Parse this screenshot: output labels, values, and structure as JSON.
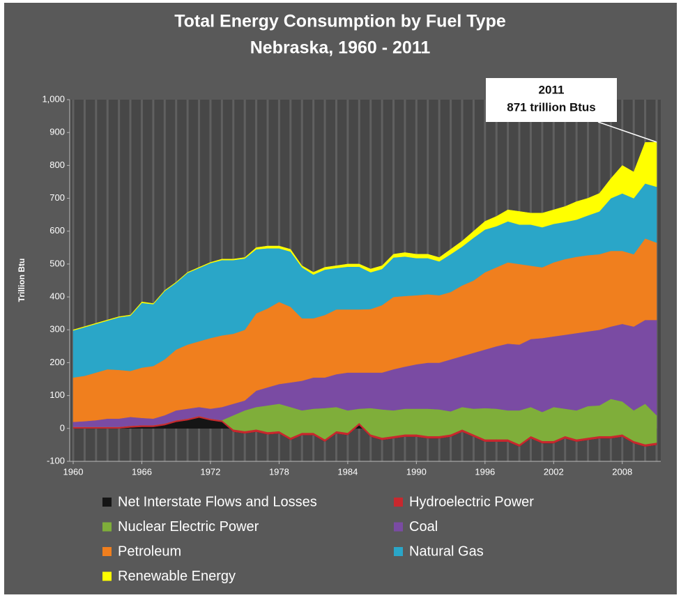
{
  "chart_data": {
    "type": "stacked_area",
    "title": "Total Energy Consumption by Fuel Type",
    "subtitle": "Nebraska, 1960 - 2011",
    "y_label": "Trillion Btu",
    "annotation": [
      "2011",
      "871 trillion Btus"
    ],
    "x": [
      1960,
      1961,
      1962,
      1963,
      1964,
      1965,
      1966,
      1967,
      1968,
      1969,
      1970,
      1971,
      1972,
      1973,
      1974,
      1975,
      1976,
      1977,
      1978,
      1979,
      1980,
      1981,
      1982,
      1983,
      1984,
      1985,
      1986,
      1987,
      1988,
      1989,
      1990,
      1991,
      1992,
      1993,
      1994,
      1995,
      1996,
      1997,
      1998,
      1999,
      2000,
      2001,
      2002,
      2003,
      2004,
      2005,
      2006,
      2007,
      2008,
      2009,
      2010,
      2011
    ],
    "xlim": [
      1960,
      2011
    ],
    "xticks": [
      1960,
      1966,
      1972,
      1978,
      1984,
      1990,
      1996,
      2002,
      2008
    ],
    "ylim": [
      -100,
      1000
    ],
    "yticks": [
      -100,
      0,
      100,
      200,
      300,
      400,
      500,
      600,
      700,
      800,
      900,
      {
        "value": 1000,
        "label": "1,000"
      }
    ],
    "grid": true,
    "legend": "bottom",
    "series": [
      {
        "name": "Net Interstate Flows and Losses",
        "color": "#151515",
        "values": [
          0,
          0,
          0,
          0,
          0,
          3,
          5,
          5,
          10,
          20,
          25,
          33,
          25,
          20,
          -10,
          -15,
          -10,
          -18,
          -15,
          -35,
          -20,
          -20,
          -40,
          -15,
          -20,
          10,
          -25,
          -35,
          -30,
          -25,
          -25,
          -30,
          -30,
          -25,
          -10,
          -25,
          -40,
          -40,
          -40,
          -55,
          -30,
          -45,
          -45,
          -30,
          -40,
          -35,
          -30,
          -30,
          -25,
          -45,
          -55,
          -50
        ]
      },
      {
        "name": "Hydroelectric Power",
        "color": "#c8282e",
        "values": [
          5,
          5,
          5,
          5,
          5,
          5,
          5,
          5,
          5,
          5,
          5,
          5,
          5,
          5,
          7,
          7,
          7,
          7,
          7,
          7,
          7,
          7,
          7,
          7,
          7,
          7,
          7,
          7,
          7,
          7,
          7,
          7,
          7,
          7,
          7,
          7,
          7,
          7,
          7,
          7,
          7,
          7,
          7,
          7,
          7,
          7,
          7,
          7,
          7,
          7,
          7,
          7
        ]
      },
      {
        "name": "Nuclear Electric Power",
        "color": "#7fae3a",
        "values": [
          0,
          0,
          0,
          0,
          0,
          0,
          0,
          0,
          0,
          0,
          0,
          0,
          0,
          0,
          43,
          63,
          68,
          81,
          83,
          93,
          68,
          73,
          95,
          73,
          68,
          43,
          80,
          86,
          78,
          78,
          78,
          83,
          81,
          70,
          68,
          78,
          95,
          93,
          88,
          103,
          88,
          88,
          103,
          83,
          88,
          96,
          93,
          113,
          100,
          93,
          123,
          83
        ]
      },
      {
        "name": "Coal",
        "color": "#7a4ba3",
        "values": [
          15,
          17,
          20,
          25,
          25,
          27,
          22,
          20,
          25,
          30,
          30,
          27,
          30,
          40,
          35,
          30,
          50,
          55,
          60,
          75,
          90,
          95,
          93,
          100,
          115,
          110,
          108,
          112,
          125,
          128,
          135,
          140,
          142,
          158,
          155,
          170,
          178,
          190,
          203,
          200,
          207,
          225,
          215,
          225,
          235,
          227,
          230,
          220,
          236,
          255,
          255,
          290
        ]
      },
      {
        "name": "Petroleum",
        "color": "#f07f1e",
        "values": [
          135,
          138,
          145,
          150,
          148,
          140,
          153,
          160,
          170,
          185,
          195,
          200,
          215,
          218,
          213,
          215,
          235,
          240,
          250,
          230,
          190,
          180,
          190,
          197,
          192,
          192,
          193,
          205,
          220,
          215,
          210,
          208,
          205,
          205,
          215,
          220,
          235,
          240,
          247,
          245,
          223,
          215,
          225,
          230,
          232,
          232,
          230,
          230,
          222,
          220,
          248,
          235
        ]
      },
      {
        "name": "Natural Gas",
        "color": "#2aa6c8",
        "values": [
          143,
          148,
          148,
          148,
          160,
          168,
          197,
          188,
          208,
          203,
          218,
          223,
          228,
          229,
          224,
          217,
          195,
          183,
          163,
          168,
          155,
          133,
          138,
          126,
          130,
          130,
          112,
          110,
          120,
          120,
          113,
          110,
          103,
          115,
          118,
          130,
          130,
          125,
          125,
          120,
          125,
          122,
          117,
          113,
          113,
          121,
          130,
          160,
          175,
          170,
          167,
          170
        ]
      },
      {
        "name": "Renewable Energy",
        "color": "#ffff00",
        "values": [
          2,
          2,
          2,
          2,
          2,
          2,
          3,
          2,
          2,
          2,
          2,
          2,
          2,
          3,
          3,
          3,
          5,
          7,
          7,
          7,
          5,
          7,
          7,
          7,
          8,
          8,
          10,
          10,
          10,
          12,
          12,
          12,
          12,
          15,
          17,
          20,
          25,
          30,
          35,
          40,
          35,
          43,
          43,
          47,
          55,
          52,
          55,
          60,
          85,
          80,
          125,
          136
        ]
      }
    ]
  }
}
